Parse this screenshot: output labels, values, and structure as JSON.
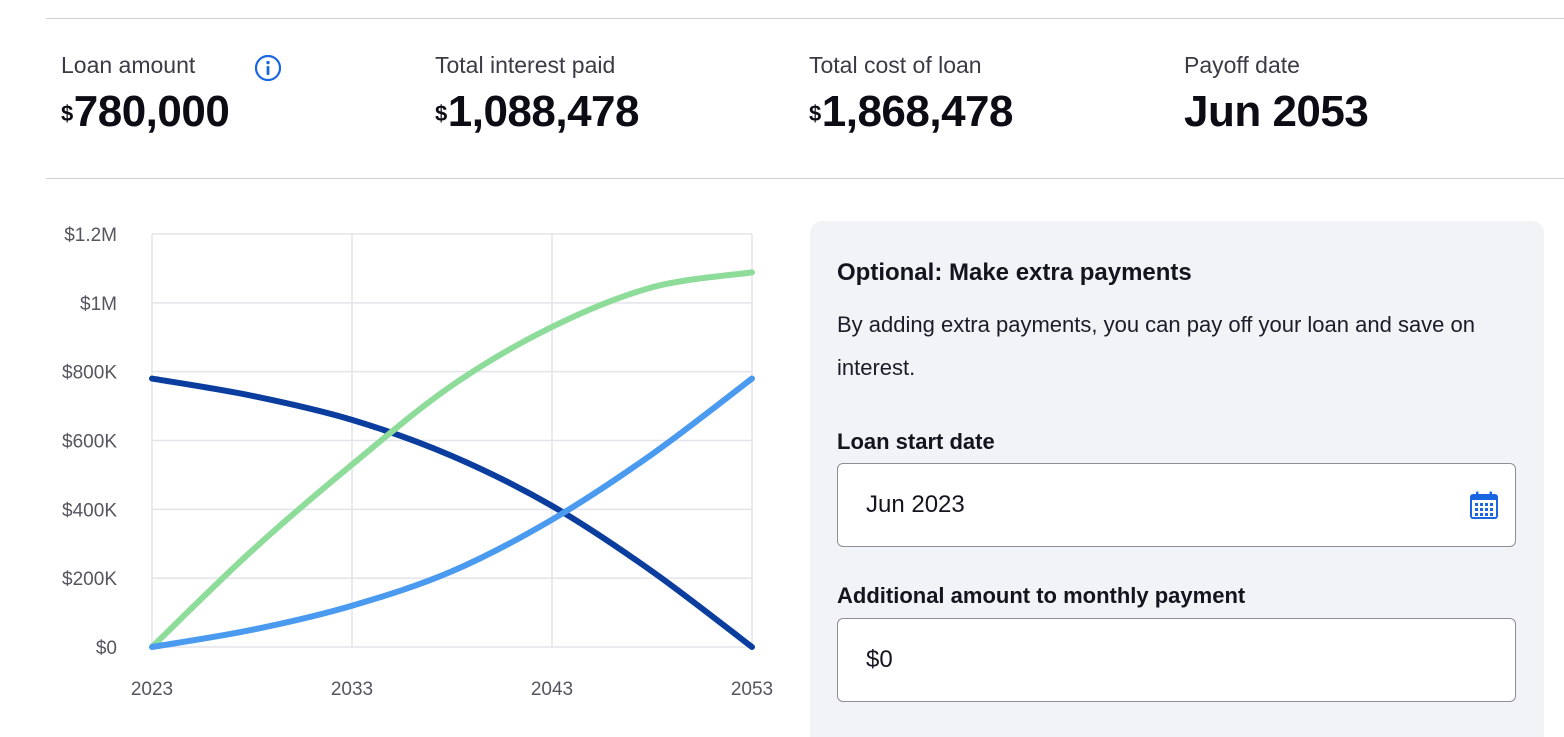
{
  "summary": {
    "loan_amount": {
      "label": "Loan amount",
      "currency": "$",
      "value": "780,000",
      "icon": "info-icon"
    },
    "total_interest": {
      "label": "Total interest paid",
      "currency": "$",
      "value": "1,088,478"
    },
    "total_cost": {
      "label": "Total cost of loan",
      "currency": "$",
      "value": "1,868,478"
    },
    "payoff": {
      "label": "Payoff date",
      "value": "Jun 2053"
    }
  },
  "extra_payments": {
    "title": "Optional: Make extra payments",
    "description": "By adding extra payments, you can pay off your loan and save on interest.",
    "start_date": {
      "label": "Loan start date",
      "value": "Jun 2023",
      "icon": "calendar-icon"
    },
    "additional": {
      "label": "Additional amount to monthly payment",
      "value": "$0"
    }
  },
  "colors": {
    "balance": "#0b3d9e",
    "interest": "#8edc9a",
    "principal": "#4a9af0",
    "accent": "#1a66e0"
  },
  "chart_data": {
    "type": "line",
    "title": "",
    "xlabel": "",
    "ylabel": "",
    "x": [
      2023,
      2028,
      2033,
      2038,
      2043,
      2048,
      2053
    ],
    "x_ticks": [
      "2023",
      "2033",
      "2043",
      "2053"
    ],
    "y_ticks": [
      "$0",
      "$200K",
      "$400K",
      "$600K",
      "$800K",
      "$1M",
      "$1.2M"
    ],
    "ylim": [
      0,
      1200000
    ],
    "xlim": [
      2023,
      2053
    ],
    "grid": true,
    "series": [
      {
        "key": "balance",
        "values": [
          780000,
          730000,
          660000,
          555000,
          410000,
          220000,
          0
        ]
      },
      {
        "key": "interest",
        "values": [
          0,
          280000,
          530000,
          760000,
          930000,
          1045000,
          1088478
        ]
      },
      {
        "key": "principal",
        "values": [
          0,
          50000,
          120000,
          220000,
          370000,
          560000,
          780000
        ]
      }
    ]
  }
}
